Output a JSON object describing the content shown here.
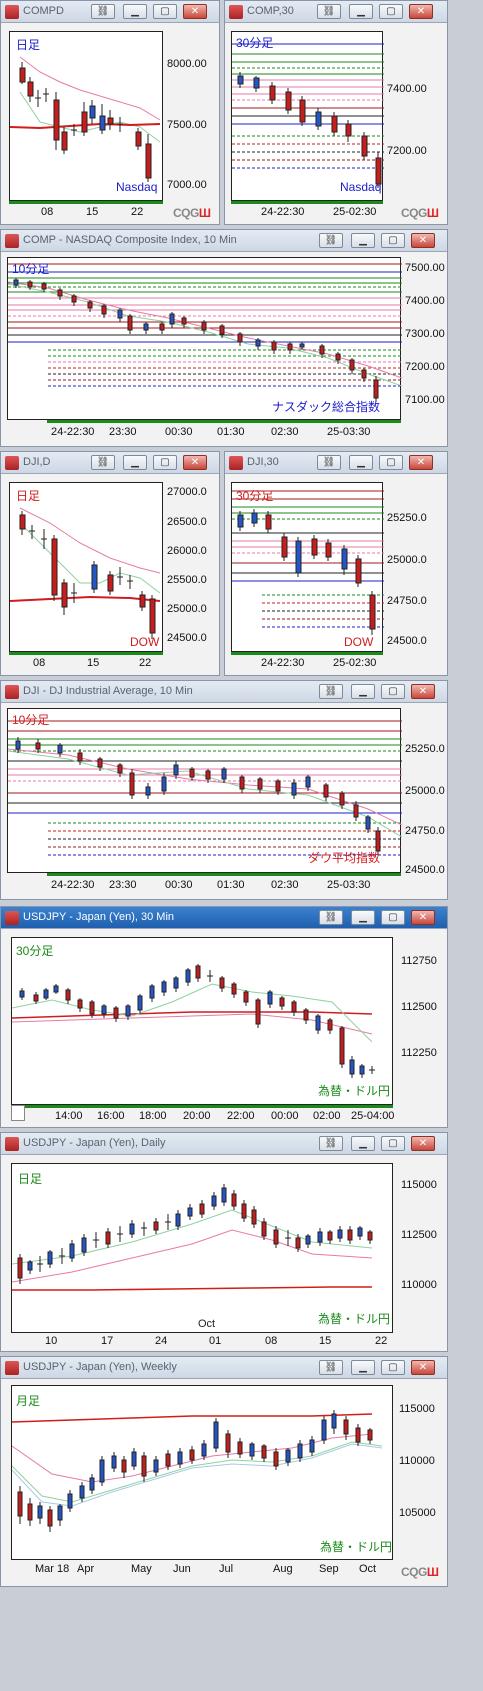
{
  "windows": {
    "compd": {
      "title": "COMPD",
      "tag": "日足",
      "name": "Nasdaq",
      "prices": [
        "8000.00",
        "7500.00",
        "7000.00"
      ],
      "times": [
        "08",
        "15",
        "22"
      ]
    },
    "comp30": {
      "title": "COMP,30",
      "tag": "30分足",
      "name": "Nasdaq",
      "prices": [
        "7400.00",
        "7200.00"
      ],
      "times": [
        "24-22:30",
        "25-02:30"
      ]
    },
    "comp10": {
      "title": "COMP - NASDAQ Composite Index, 10 Min",
      "tag": "10分足",
      "name": "ナスダック総合指数",
      "prices": [
        "7500.00",
        "7400.00",
        "7300.00",
        "7200.00",
        "7100.00"
      ],
      "times": [
        "24-22:30",
        "23:30",
        "00:30",
        "01:30",
        "02:30",
        "25-03:30"
      ]
    },
    "djid": {
      "title": "DJI,D",
      "tag": "日足",
      "name": "DOW",
      "prices": [
        "27000.0",
        "26500.0",
        "26000.0",
        "25500.0",
        "25000.0",
        "24500.0"
      ],
      "times": [
        "08",
        "15",
        "22"
      ]
    },
    "dji30": {
      "title": "DJI,30",
      "tag": "30分足",
      "name": "DOW",
      "prices": [
        "25250.0",
        "25000.0",
        "24750.0",
        "24500.0"
      ],
      "times": [
        "24-22:30",
        "25-02:30"
      ]
    },
    "dji10": {
      "title": "DJI - DJ Industrial Average, 10 Min",
      "tag": "10分足",
      "name": "ダウ平均指数",
      "prices": [
        "25250.0",
        "25000.0",
        "24750.0",
        "24500.0"
      ],
      "times": [
        "24-22:30",
        "23:30",
        "00:30",
        "01:30",
        "02:30",
        "25-03:30"
      ]
    },
    "usdjpy30": {
      "title": "USDJPY - Japan (Yen), 30 Min",
      "tag": "30分足",
      "name": "為替・ドル円",
      "prices": [
        "112750",
        "112500",
        "112250"
      ],
      "times": [
        "14:00",
        "16:00",
        "18:00",
        "20:00",
        "22:00",
        "00:00",
        "02:00",
        "25-04:00"
      ]
    },
    "usdjpyd": {
      "title": "USDJPY - Japan (Yen), Daily",
      "tag": "日足",
      "name": "為替・ドル円",
      "prices": [
        "115000",
        "112500",
        "110000"
      ],
      "times": [
        "10",
        "17",
        "24",
        "01",
        "08",
        "15",
        "22"
      ],
      "month": "Oct"
    },
    "usdjpyw": {
      "title": "USDJPY - Japan (Yen), Weekly",
      "tag": "月足",
      "name": "為替・ドル円",
      "prices": [
        "115000",
        "110000",
        "105000"
      ],
      "times": [
        "Mar 18",
        "Apr",
        "May",
        "Jun",
        "Jul",
        "Aug",
        "Sep",
        "Oct"
      ]
    }
  },
  "brand": {
    "a": "CQG",
    "b": "Ш"
  },
  "colors": {
    "up": "#2456c8",
    "down": "#c81d1d",
    "tag_blue": "#1c1cc8",
    "tag_red": "#d21c1c",
    "tag_green": "#1a8a1a"
  }
}
